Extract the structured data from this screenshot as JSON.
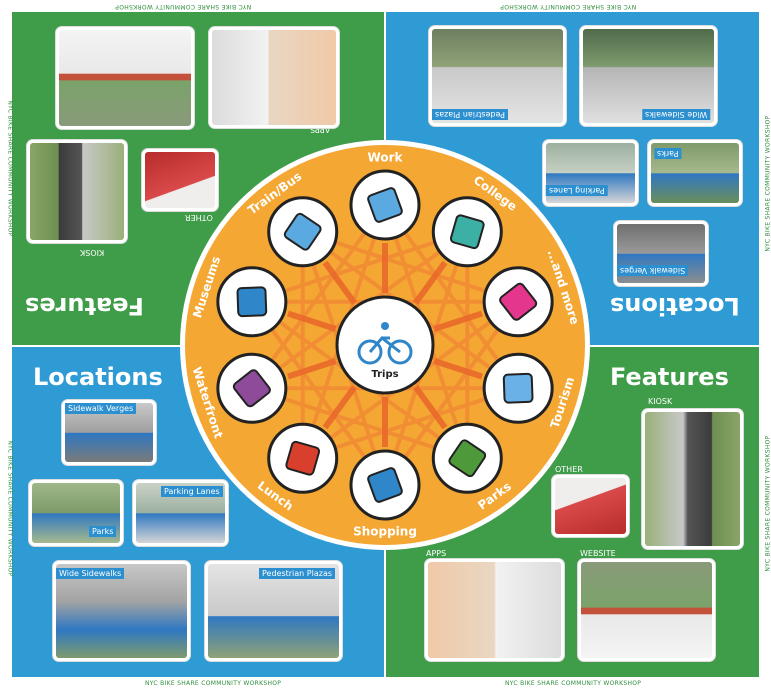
{
  "edge_text": "NYC BIKE SHARE COMMUNITY WORKSHOP",
  "quadrants": {
    "top_left": {
      "title": "Features",
      "labels": {
        "apps": "APPS",
        "other": "OTHER",
        "kiosk": "KIOSK"
      }
    },
    "top_right": {
      "title": "Locations",
      "captions": [
        "Pedestrian Plazas",
        "Wide Sidewalks",
        "Parks",
        "Parking Lanes",
        "Sidewalk Verges"
      ]
    },
    "bottom_left": {
      "title": "Locations",
      "captions": [
        "Sidewalk Verges",
        "Parks",
        "Parking Lanes",
        "Wide Sidewalks",
        "Pedestrian Plazas"
      ]
    },
    "bottom_right": {
      "title": "Features",
      "labels": {
        "kiosk": "KIOSK",
        "other": "OTHER",
        "apps": "APPS",
        "website": "WEBSITE"
      }
    }
  },
  "wheel": {
    "center": "Trips",
    "destinations": [
      "Work",
      "College",
      "...and more",
      "Tourism",
      "Parks",
      "Shopping",
      "Lunch",
      "Waterfront",
      "Museums",
      "Train/Bus"
    ]
  },
  "colors": {
    "green": "#3f9c48",
    "blue": "#2f9bd4",
    "orange": "#f4a733",
    "dark": "#222222"
  }
}
